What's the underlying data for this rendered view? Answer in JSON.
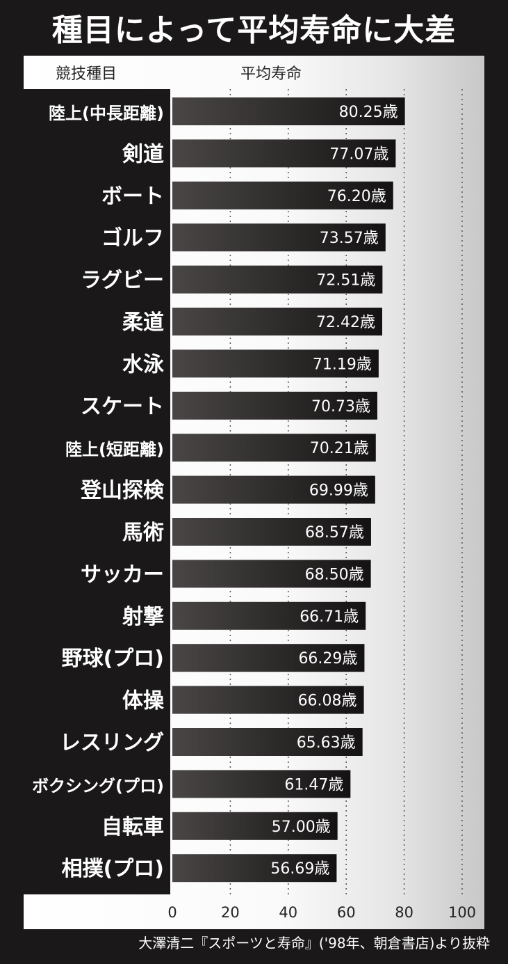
{
  "chart_data": {
    "type": "bar",
    "orientation": "horizontal",
    "title": "種目によって平均寿命に大差",
    "category_header": "競技種目",
    "value_header": "平均寿命",
    "value_suffix": "歳",
    "categories": [
      "陸上(中長距離)",
      "剣道",
      "ボート",
      "ゴルフ",
      "ラグビー",
      "柔道",
      "水泳",
      "スケート",
      "陸上(短距離)",
      "登山探検",
      "馬術",
      "サッカー",
      "射撃",
      "野球(プロ)",
      "体操",
      "レスリング",
      "ボクシング(プロ)",
      "自転車",
      "相撲(プロ)"
    ],
    "values": [
      80.25,
      77.07,
      76.2,
      73.57,
      72.51,
      72.42,
      71.19,
      70.73,
      70.21,
      69.99,
      68.57,
      68.5,
      66.71,
      66.29,
      66.08,
      65.63,
      61.47,
      57.0,
      56.69
    ],
    "value_labels": [
      "80.25歳",
      "77.07歳",
      "76.20歳",
      "73.57歳",
      "72.51歳",
      "72.42歳",
      "71.19歳",
      "70.73歳",
      "70.21歳",
      "69.99歳",
      "68.57歳",
      "68.50歳",
      "66.71歳",
      "66.29歳",
      "66.08歳",
      "65.63歳",
      "61.47歳",
      "57.00歳",
      "56.69歳"
    ],
    "xlim": [
      0,
      100
    ],
    "xticks": [
      "0",
      "20",
      "40",
      "60",
      "80",
      "100"
    ],
    "grid": "vertical dotted",
    "bar_color": "#1a1818",
    "source": "大澤清二『スポーツと寿命』('98年、朝倉書店)より抜粋"
  }
}
